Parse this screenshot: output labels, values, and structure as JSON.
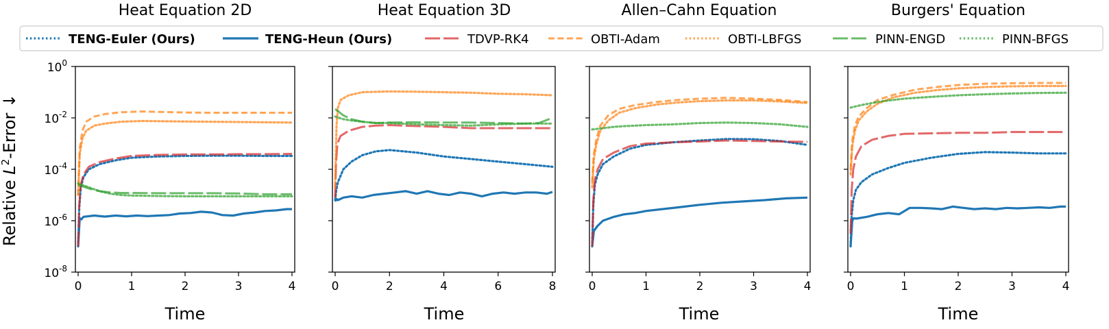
{
  "figure": {
    "ylabel_prefix": "Relative ",
    "ylabel_var": "L",
    "ylabel_sup": "2",
    "ylabel_suffix": "-Error ↓",
    "ytick_base": "10",
    "ytick_exponents": [
      "0",
      "-2",
      "-4",
      "-6",
      "-8"
    ]
  },
  "legend": [
    {
      "label": "TENG-Euler (Ours)",
      "color": "#1f77b4",
      "style": "dotted",
      "bold": true
    },
    {
      "label": "TENG-Heun (Ours)",
      "color": "#1f77b4",
      "style": "solid",
      "bold": true
    },
    {
      "label": "TDVP-RK4",
      "color": "#d62728",
      "style": "longdash",
      "bold": false
    },
    {
      "label": "OBTI-Adam",
      "color": "#ff7f0e",
      "style": "dashed",
      "bold": false
    },
    {
      "label": "OBTI-LBFGS",
      "color": "#ff7f0e",
      "style": "dotted",
      "bold": false
    },
    {
      "label": "PINN-ENGD",
      "color": "#2ca02c",
      "style": "longdash",
      "bold": false
    },
    {
      "label": "PINN-BFGS",
      "color": "#2ca02c",
      "style": "dotted",
      "bold": false
    }
  ],
  "chart_data": [
    {
      "type": "line",
      "title": "Heat Equation 2D",
      "xlabel": "Time",
      "ylabel": "Relative L²-Error",
      "yscale": "log",
      "xlim": [
        0,
        4
      ],
      "ylim_exp": [
        -8,
        0
      ],
      "xticks": [
        0,
        1,
        2,
        3,
        4
      ],
      "series": [
        {
          "name": "TENG-Euler (Ours)",
          "t": [
            0,
            0.02,
            0.05,
            0.1,
            0.2,
            0.4,
            0.7,
            1,
            1.5,
            2,
            2.5,
            3,
            3.5,
            4
          ],
          "log10": [
            -7,
            -5.5,
            -4.7,
            -4.3,
            -4.0,
            -3.8,
            -3.65,
            -3.55,
            -3.5,
            -3.48,
            -3.47,
            -3.47,
            -3.48,
            -3.48
          ]
        },
        {
          "name": "TENG-Heun (Ours)",
          "t": [
            0,
            0.03,
            0.06,
            0.1,
            0.3,
            0.5,
            0.7,
            0.9,
            1.1,
            1.3,
            1.5,
            1.7,
            1.9,
            2.1,
            2.3,
            2.5,
            2.7,
            2.9,
            3.1,
            3.3,
            3.5,
            3.7,
            3.9,
            4
          ],
          "log10": [
            -7,
            -5.9,
            -5.95,
            -5.85,
            -5.8,
            -5.84,
            -5.8,
            -5.83,
            -5.8,
            -5.82,
            -5.8,
            -5.78,
            -5.72,
            -5.7,
            -5.65,
            -5.68,
            -5.78,
            -5.8,
            -5.72,
            -5.68,
            -5.62,
            -5.6,
            -5.55,
            -5.55
          ]
        },
        {
          "name": "TDVP-RK4",
          "t": [
            0,
            0.02,
            0.05,
            0.1,
            0.2,
            0.4,
            0.7,
            1,
            1.5,
            2,
            2.5,
            3,
            3.5,
            4
          ],
          "log10": [
            -7,
            -5.4,
            -4.6,
            -4.2,
            -3.9,
            -3.72,
            -3.58,
            -3.48,
            -3.44,
            -3.42,
            -3.42,
            -3.41,
            -3.41,
            -3.4
          ]
        },
        {
          "name": "OBTI-Adam",
          "t": [
            0,
            0.03,
            0.08,
            0.15,
            0.3,
            0.5,
            0.8,
            1.2,
            1.6,
            2,
            2.5,
            3,
            3.5,
            4
          ],
          "log10": [
            -5,
            -3.2,
            -2.5,
            -2.15,
            -1.95,
            -1.85,
            -1.78,
            -1.75,
            -1.77,
            -1.79,
            -1.8,
            -1.8,
            -1.8,
            -1.8
          ]
        },
        {
          "name": "OBTI-LBFGS",
          "t": [
            0,
            0.03,
            0.08,
            0.15,
            0.3,
            0.5,
            0.8,
            1.2,
            1.6,
            2,
            2.5,
            3,
            3.5,
            4
          ],
          "log10": [
            -5,
            -3.4,
            -2.8,
            -2.5,
            -2.3,
            -2.22,
            -2.15,
            -2.12,
            -2.13,
            -2.14,
            -2.15,
            -2.16,
            -2.17,
            -2.18
          ]
        },
        {
          "name": "PINN-ENGD",
          "t": [
            0,
            0.2,
            0.4,
            0.6,
            0.8,
            1,
            1.5,
            2,
            2.5,
            3,
            3.5,
            4
          ],
          "log10": [
            -4.6,
            -4.75,
            -4.85,
            -4.9,
            -4.92,
            -4.92,
            -4.93,
            -4.93,
            -4.93,
            -4.94,
            -4.97,
            -4.97
          ]
        },
        {
          "name": "PINN-BFGS",
          "t": [
            0,
            0.2,
            0.4,
            0.6,
            0.8,
            1,
            1.5,
            2,
            2.5,
            3,
            3.5,
            4
          ],
          "log10": [
            -4.55,
            -4.7,
            -4.85,
            -4.95,
            -5.0,
            -5.02,
            -5.04,
            -5.05,
            -5.05,
            -5.05,
            -5.05,
            -5.05
          ]
        }
      ]
    },
    {
      "type": "line",
      "title": "Heat Equation 3D",
      "xlabel": "Time",
      "ylabel": "",
      "yscale": "log",
      "xlim": [
        0,
        8
      ],
      "ylim_exp": [
        -8,
        0
      ],
      "xticks": [
        0,
        2,
        4,
        6,
        8
      ],
      "series": [
        {
          "name": "TENG-Euler (Ours)",
          "t": [
            0,
            0.04,
            0.1,
            0.3,
            0.6,
            1,
            1.5,
            2,
            3,
            4,
            5,
            6,
            7,
            8
          ],
          "log10": [
            -5.2,
            -4.8,
            -4.5,
            -4.0,
            -3.7,
            -3.45,
            -3.3,
            -3.25,
            -3.35,
            -3.5,
            -3.6,
            -3.7,
            -3.8,
            -3.9
          ]
        },
        {
          "name": "TENG-Heun (Ours)",
          "t": [
            0,
            0.05,
            0.1,
            0.3,
            0.6,
            1,
            1.4,
            1.8,
            2.2,
            2.6,
            3,
            3.4,
            3.8,
            4.2,
            4.6,
            5,
            5.4,
            5.8,
            6.2,
            6.6,
            7,
            7.4,
            7.8,
            8
          ],
          "log10": [
            -5.25,
            -5.15,
            -5.2,
            -5.1,
            -5.05,
            -5.1,
            -5.0,
            -4.95,
            -4.9,
            -4.85,
            -4.95,
            -4.85,
            -4.95,
            -5.0,
            -4.9,
            -4.95,
            -5.05,
            -4.95,
            -4.9,
            -4.95,
            -4.9,
            -4.9,
            -4.95,
            -4.88
          ]
        },
        {
          "name": "TDVP-RK4",
          "t": [
            0,
            0.03,
            0.08,
            0.2,
            0.5,
            1,
            1.5,
            2,
            3,
            4,
            5,
            6,
            7,
            8
          ],
          "log10": [
            -5.1,
            -3.8,
            -3.0,
            -2.7,
            -2.5,
            -2.35,
            -2.3,
            -2.28,
            -2.32,
            -2.35,
            -2.4,
            -2.4,
            -2.4,
            -2.4
          ]
        },
        {
          "name": "OBTI-LBFGS",
          "t": [
            0,
            0.05,
            0.1,
            0.2,
            0.5,
            1,
            2,
            3,
            4,
            5,
            6,
            7,
            8
          ],
          "log10": [
            -4.7,
            -2.3,
            -1.6,
            -1.3,
            -1.12,
            -1.0,
            -0.97,
            -0.98,
            -1.0,
            -1.02,
            -1.06,
            -1.08,
            -1.12
          ]
        },
        {
          "name": "PINN-ENGD",
          "t": [
            0,
            0.3,
            0.6,
            1,
            1.5,
            2,
            3,
            4,
            5,
            6,
            7,
            7.5,
            8
          ],
          "log10": [
            -1.65,
            -1.9,
            -2.05,
            -2.15,
            -2.2,
            -2.18,
            -2.17,
            -2.18,
            -2.18,
            -2.2,
            -2.22,
            -2.2,
            -2.0
          ]
        },
        {
          "name": "PINN-BFGS",
          "t": [
            0,
            0.3,
            0.6,
            1,
            1.5,
            2,
            3,
            4,
            5,
            6,
            7,
            8
          ],
          "log10": [
            -1.95,
            -2.05,
            -2.1,
            -2.15,
            -2.2,
            -2.2,
            -2.25,
            -2.28,
            -2.3,
            -2.25,
            -2.22,
            -2.22
          ]
        }
      ]
    },
    {
      "type": "line",
      "title": "Allen–Cahn Equation",
      "xlabel": "Time",
      "ylabel": "",
      "yscale": "log",
      "xlim": [
        0,
        4
      ],
      "ylim_exp": [
        -8,
        0
      ],
      "xticks": [
        0,
        1,
        2,
        3,
        4
      ],
      "series": [
        {
          "name": "TENG-Euler (Ours)",
          "t": [
            0,
            0.02,
            0.05,
            0.1,
            0.2,
            0.4,
            0.7,
            1,
            1.5,
            2,
            2.5,
            3,
            3.5,
            4
          ],
          "log10": [
            -7,
            -5.4,
            -4.6,
            -4.2,
            -3.8,
            -3.5,
            -3.2,
            -3.05,
            -2.95,
            -2.88,
            -2.82,
            -2.83,
            -2.9,
            -3.05
          ]
        },
        {
          "name": "TENG-Heun (Ours)",
          "t": [
            0,
            0.03,
            0.1,
            0.2,
            0.4,
            0.6,
            0.8,
            1,
            1.3,
            1.6,
            2,
            2.4,
            2.8,
            3.2,
            3.6,
            4
          ],
          "log10": [
            -7,
            -6.4,
            -6.2,
            -6.0,
            -5.85,
            -5.75,
            -5.7,
            -5.62,
            -5.55,
            -5.48,
            -5.38,
            -5.3,
            -5.25,
            -5.2,
            -5.13,
            -5.1
          ]
        },
        {
          "name": "TDVP-RK4",
          "t": [
            0,
            0.02,
            0.05,
            0.1,
            0.2,
            0.4,
            0.7,
            1,
            1.5,
            2,
            2.5,
            3,
            3.5,
            4
          ],
          "log10": [
            -7,
            -5.2,
            -4.4,
            -4.0,
            -3.6,
            -3.35,
            -3.1,
            -3.0,
            -2.95,
            -2.92,
            -2.88,
            -2.9,
            -2.92,
            -2.93
          ]
        },
        {
          "name": "OBTI-Adam",
          "t": [
            0,
            0.03,
            0.08,
            0.15,
            0.3,
            0.5,
            0.8,
            1.2,
            1.6,
            2,
            2.5,
            3,
            3.5,
            4
          ],
          "log10": [
            -4.5,
            -3.4,
            -2.8,
            -2.3,
            -1.9,
            -1.65,
            -1.5,
            -1.38,
            -1.3,
            -1.25,
            -1.22,
            -1.25,
            -1.3,
            -1.38
          ]
        },
        {
          "name": "OBTI-LBFGS",
          "t": [
            0,
            0.03,
            0.08,
            0.15,
            0.3,
            0.5,
            0.8,
            1.2,
            1.6,
            2,
            2.5,
            3,
            3.5,
            4
          ],
          "log10": [
            -4.7,
            -3.6,
            -3.0,
            -2.5,
            -2.1,
            -1.8,
            -1.62,
            -1.48,
            -1.4,
            -1.35,
            -1.32,
            -1.32,
            -1.36,
            -1.42
          ]
        },
        {
          "name": "PINN-BFGS",
          "t": [
            0,
            0.2,
            0.4,
            0.6,
            0.8,
            1,
            1.5,
            2,
            2.5,
            3,
            3.5,
            4
          ],
          "log10": [
            -2.45,
            -2.4,
            -2.35,
            -2.32,
            -2.3,
            -2.28,
            -2.25,
            -2.2,
            -2.18,
            -2.2,
            -2.25,
            -2.35
          ]
        }
      ]
    },
    {
      "type": "line",
      "title": "Burgers' Equation",
      "xlabel": "Time",
      "ylabel": "",
      "yscale": "log",
      "xlim": [
        0,
        4
      ],
      "ylim_exp": [
        -8,
        0
      ],
      "xticks": [
        0,
        1,
        2,
        3,
        4
      ],
      "series": [
        {
          "name": "TENG-Euler (Ours)",
          "t": [
            0,
            0.02,
            0.05,
            0.1,
            0.2,
            0.4,
            0.7,
            1,
            1.5,
            2,
            2.5,
            3,
            3.5,
            4
          ],
          "log10": [
            -7,
            -5.8,
            -5.2,
            -4.8,
            -4.5,
            -4.2,
            -3.95,
            -3.75,
            -3.55,
            -3.4,
            -3.33,
            -3.35,
            -3.38,
            -3.38
          ]
        },
        {
          "name": "TENG-Heun (Ours)",
          "t": [
            0,
            0.03,
            0.06,
            0.1,
            0.3,
            0.5,
            0.7,
            0.9,
            1.1,
            1.3,
            1.5,
            1.7,
            1.9,
            2.1,
            2.3,
            2.5,
            2.7,
            2.9,
            3.1,
            3.3,
            3.5,
            3.7,
            3.9,
            4
          ],
          "log10": [
            -7,
            -6.0,
            -5.9,
            -5.92,
            -5.85,
            -5.75,
            -5.7,
            -5.75,
            -5.5,
            -5.5,
            -5.52,
            -5.55,
            -5.45,
            -5.5,
            -5.55,
            -5.52,
            -5.55,
            -5.5,
            -5.52,
            -5.5,
            -5.48,
            -5.5,
            -5.45,
            -5.45
          ]
        },
        {
          "name": "TDVP-RK4",
          "t": [
            0,
            0.02,
            0.05,
            0.1,
            0.2,
            0.4,
            0.7,
            1,
            1.5,
            2,
            2.5,
            3,
            3.5,
            4
          ],
          "log10": [
            -6.5,
            -4.8,
            -4.0,
            -3.5,
            -3.1,
            -2.85,
            -2.7,
            -2.62,
            -2.6,
            -2.58,
            -2.58,
            -2.55,
            -2.55,
            -2.55
          ]
        },
        {
          "name": "OBTI-Adam",
          "t": [
            0,
            0.03,
            0.08,
            0.15,
            0.3,
            0.5,
            0.8,
            1.2,
            1.6,
            2,
            2.5,
            3,
            3.5,
            4
          ],
          "log10": [
            -4,
            -2.9,
            -2.3,
            -1.95,
            -1.62,
            -1.3,
            -1.1,
            -0.9,
            -0.8,
            -0.72,
            -0.67,
            -0.65,
            -0.64,
            -0.64
          ]
        },
        {
          "name": "OBTI-LBFGS",
          "t": [
            0,
            0.03,
            0.08,
            0.15,
            0.3,
            0.5,
            0.8,
            1.2,
            1.6,
            2,
            2.5,
            3,
            3.5,
            4
          ],
          "log10": [
            -4.2,
            -3.1,
            -2.5,
            -2.1,
            -1.75,
            -1.45,
            -1.2,
            -1.02,
            -0.92,
            -0.85,
            -0.8,
            -0.77,
            -0.76,
            -0.76
          ]
        },
        {
          "name": "PINN-BFGS",
          "t": [
            0,
            0.2,
            0.4,
            0.6,
            0.8,
            1,
            1.5,
            2,
            2.5,
            3,
            3.5,
            4
          ],
          "log10": [
            -1.6,
            -1.5,
            -1.42,
            -1.35,
            -1.3,
            -1.25,
            -1.18,
            -1.12,
            -1.08,
            -1.05,
            -1.03,
            -1.02
          ]
        }
      ]
    }
  ]
}
